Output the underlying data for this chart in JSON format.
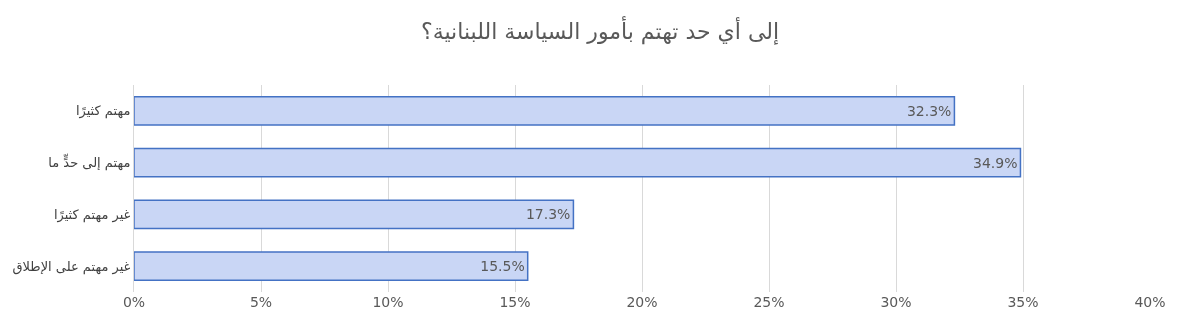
{
  "chart_data": {
    "type": "bar",
    "orientation": "horizontal",
    "title": "إلى أي حد تهتم بأمور السياسة اللبنانية؟",
    "categories": [
      "مهتم كثيرًا",
      "مهتم إلى حدٍّ ما",
      "غير مهتم كثيرًا",
      "غير مهتم على الإطلاق"
    ],
    "values": [
      32.3,
      34.9,
      17.3,
      15.5
    ],
    "value_labels": [
      "32.3%",
      "34.9%",
      "17.3%",
      "15.5%"
    ],
    "color": "#c9d6f5",
    "xlim": [
      0,
      40
    ],
    "xticks": [
      {
        "value": 0,
        "label": "0%"
      },
      {
        "value": 5,
        "label": "5%"
      },
      {
        "value": 10,
        "label": "10%"
      },
      {
        "value": 15,
        "label": "15%"
      },
      {
        "value": 20,
        "label": "20%"
      },
      {
        "value": 25,
        "label": "25%"
      },
      {
        "value": 30,
        "label": "30%"
      },
      {
        "value": 35,
        "label": "35%"
      },
      {
        "value": 40,
        "label": "40%"
      }
    ],
    "grid": "x"
  }
}
